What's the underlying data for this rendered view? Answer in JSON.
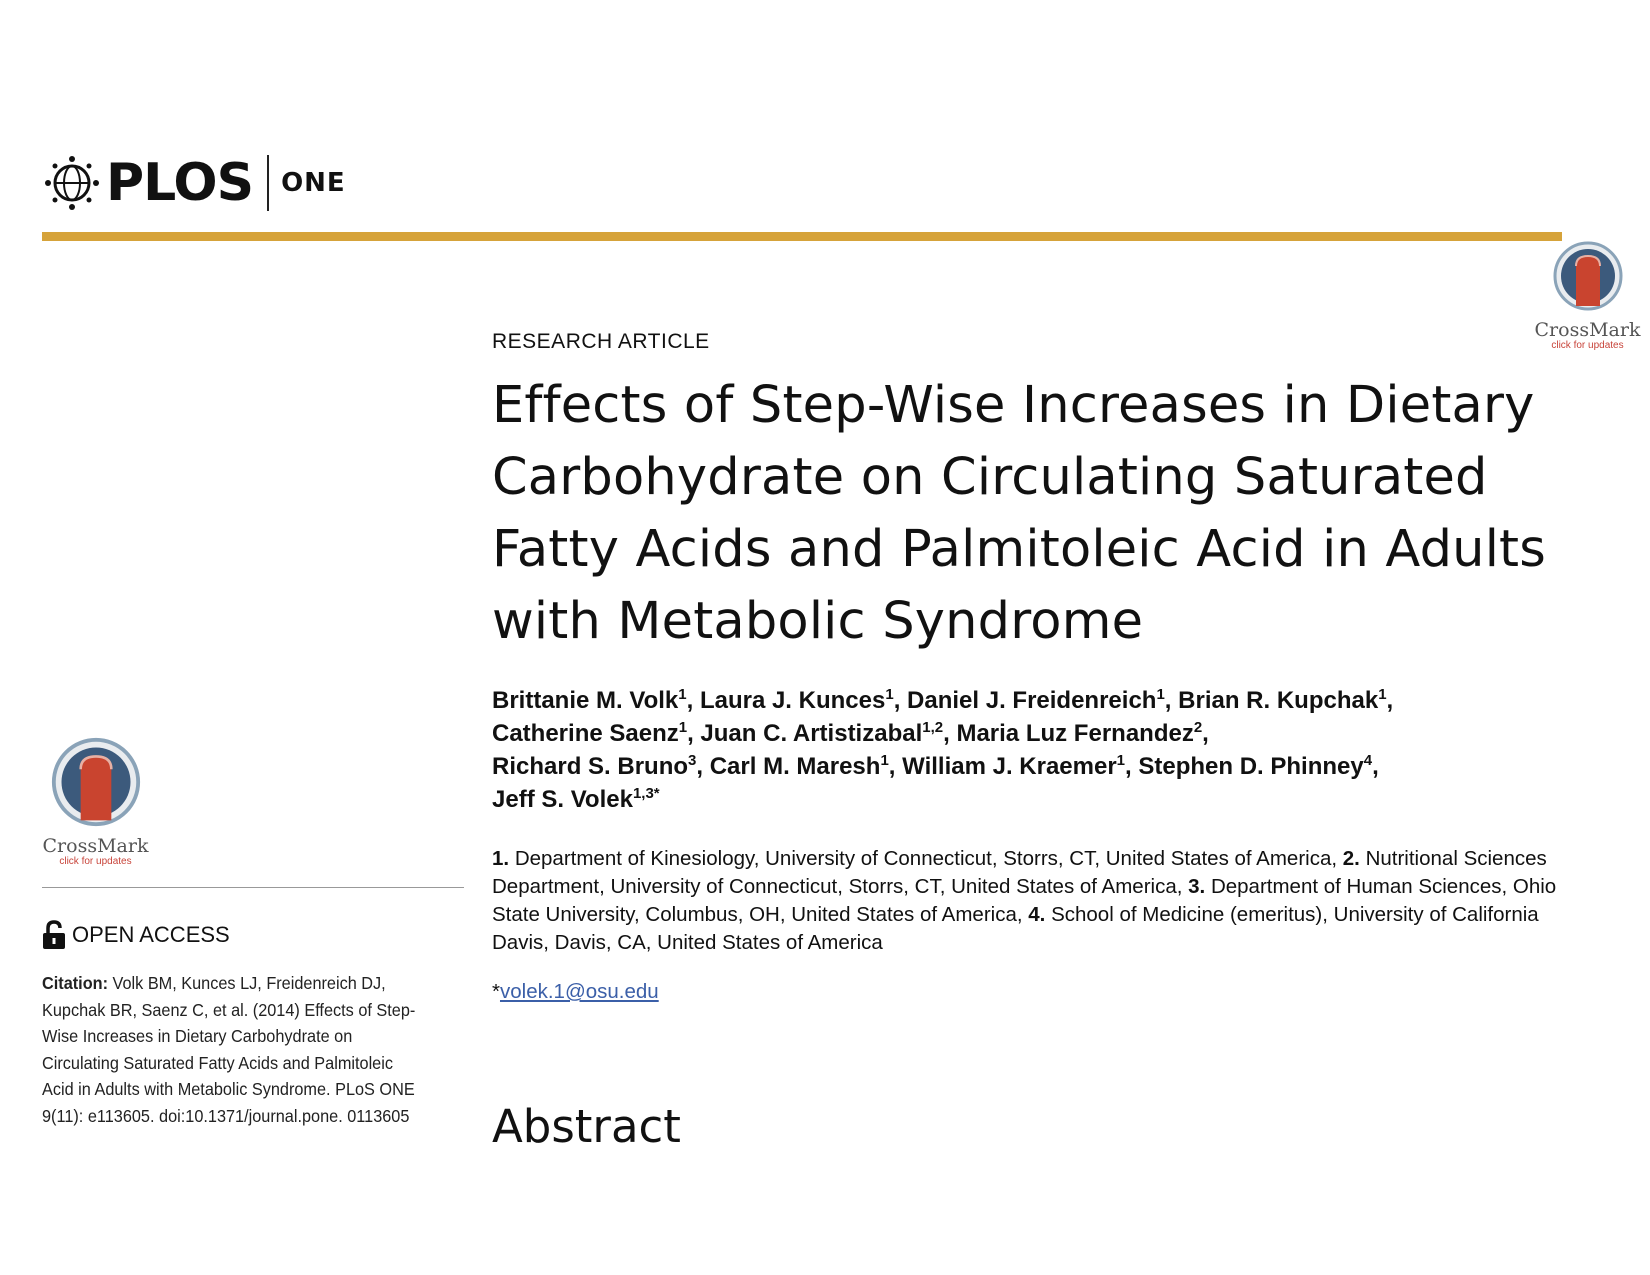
{
  "header": {
    "journal_name": "PLOS",
    "journal_sub": "ONE"
  },
  "crossmark": {
    "label": "CrossMark",
    "sublabel": "click for updates"
  },
  "sidebar": {
    "open_access": "OPEN ACCESS",
    "citation_label": "Citation:",
    "citation_text": "Volk BM, Kunces LJ, Freidenreich DJ, Kupchak BR, Saenz C, et al. (2014) Effects of Step-Wise Increases in Dietary Carbohydrate on Circulating Saturated Fatty Acids and Palmitoleic Acid in Adults with Metabolic Syndrome. PLoS ONE 9(11): e113605. doi:10.1371/journal.pone. 0113605"
  },
  "article": {
    "type": "RESEARCH ARTICLE",
    "title": "Effects of Step-Wise Increases in Dietary Carbohydrate on Circulating Saturated Fatty Acids and Palmitoleic Acid in Adults with Metabolic Syndrome",
    "authors": [
      {
        "name": "Brittanie M. Volk",
        "aff": "1"
      },
      {
        "name": "Laura J. Kunces",
        "aff": "1"
      },
      {
        "name": "Daniel J. Freidenreich",
        "aff": "1"
      },
      {
        "name": "Brian R. Kupchak",
        "aff": "1"
      },
      {
        "name": "Catherine Saenz",
        "aff": "1"
      },
      {
        "name": "Juan C. Artistizabal",
        "aff": "1,2"
      },
      {
        "name": "Maria Luz Fernandez",
        "aff": "2"
      },
      {
        "name": "Richard S. Bruno",
        "aff": "3"
      },
      {
        "name": "Carl M. Maresh",
        "aff": "1"
      },
      {
        "name": "William J. Kraemer",
        "aff": "1"
      },
      {
        "name": "Stephen D. Phinney",
        "aff": "4"
      },
      {
        "name": "Jeff S. Volek",
        "aff": "1,3*"
      }
    ],
    "affiliations": [
      {
        "num": "1.",
        "text": "Department of Kinesiology, University of Connecticut, Storrs, CT, United States of America,"
      },
      {
        "num": "2.",
        "text": "Nutritional Sciences Department, University of Connecticut, Storrs, CT, United States of America,"
      },
      {
        "num": "3.",
        "text": "Department of Human Sciences, Ohio State University, Columbus, OH, United States of America,"
      },
      {
        "num": "4.",
        "text": "School of Medicine (emeritus), University of California Davis, Davis, CA, United States of America"
      }
    ],
    "email_marker": "*",
    "email": "volek.1@osu.edu",
    "abstract_heading": "Abstract"
  }
}
